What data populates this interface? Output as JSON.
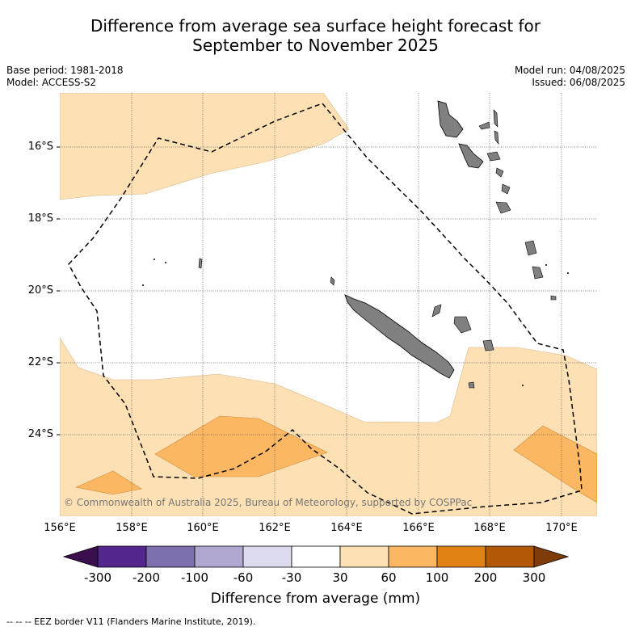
{
  "title_line1": "Difference from average sea surface height forecast for",
  "title_line2": "September to November 2025",
  "meta_left": {
    "base_period": "Base period: 1981-2018",
    "model": "Model: ACCESS-S2"
  },
  "meta_right": {
    "model_run": "Model run: 04/08/2025",
    "issued": "Issued: 06/08/2025"
  },
  "lat_labels": [
    "16°S",
    "18°S",
    "20°S",
    "22°S",
    "24°S"
  ],
  "lon_labels": [
    "156°E",
    "158°E",
    "160°E",
    "162°E",
    "164°E",
    "166°E",
    "168°E",
    "170°E"
  ],
  "copyright": "© Commonwealth of Australia 2025, Bureau of Meteorology, supported by COSPPac",
  "colorbar": {
    "ticks": [
      "-300",
      "-200",
      "-100",
      "-60",
      "-30",
      "30",
      "60",
      "100",
      "200",
      "300"
    ],
    "colors": [
      "#3b0f4d",
      "#54278f",
      "#7e6fae",
      "#b0a8d1",
      "#dcdbee",
      "#ffffff",
      "#fde0b4",
      "#fbb761",
      "#e08214",
      "#b35806",
      "#7f3b08"
    ],
    "label": "Difference from average (mm)"
  },
  "legend_footer": "--  --  -- EEZ border V11 (Flanders Marine Institute, 2019).",
  "map": {
    "lon_range": [
      156,
      171
    ],
    "lat_range": [
      -26.3,
      -14.6
    ],
    "fill_colors": {
      "light": "#fde0b4",
      "medium": "#fbb761",
      "land": "#808080",
      "ocean": "#ffffff"
    }
  }
}
